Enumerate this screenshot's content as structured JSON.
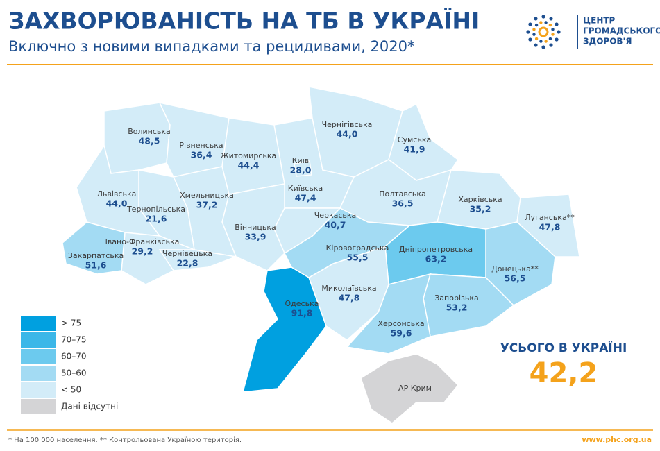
{
  "header": {
    "title": "ЗАХВОРЮВАНІСТЬ НА ТБ В УКРАЇНІ",
    "subtitle": "Включно з новими випадками та рецидивами, 2020*"
  },
  "logo": {
    "lines": [
      "ЦЕНТР",
      "ГРОМАДСЬКОГО",
      "ЗДОРОВ'Я"
    ]
  },
  "regions": [
    {
      "name": "Волинська",
      "value": "48,5",
      "color": "#d3ecf8"
    },
    {
      "name": "Рівненська",
      "value": "36,4",
      "color": "#d3ecf8"
    },
    {
      "name": "Житомирська",
      "value": "44,4",
      "color": "#d3ecf8"
    },
    {
      "name": "Київська",
      "value": "47,4",
      "color": "#d3ecf8"
    },
    {
      "name": "Київ",
      "value": "28,0",
      "color": "#d3ecf8"
    },
    {
      "name": "Чернігівська",
      "value": "44,0",
      "color": "#d3ecf8"
    },
    {
      "name": "Сумська",
      "value": "41,9",
      "color": "#d3ecf8"
    },
    {
      "name": "Полтавська",
      "value": "36,5",
      "color": "#d3ecf8"
    },
    {
      "name": "Харківська",
      "value": "35,2",
      "color": "#d3ecf8"
    },
    {
      "name": "Луганська**",
      "value": "47,8",
      "color": "#d3ecf8"
    },
    {
      "name": "Донецька**",
      "value": "56,5",
      "color": "#a3dbf3"
    },
    {
      "name": "Дніпропетровська",
      "value": "63,2",
      "color": "#6ccaee"
    },
    {
      "name": "Запорізька",
      "value": "53,2",
      "color": "#a3dbf3"
    },
    {
      "name": "Херсонська",
      "value": "59,6",
      "color": "#a3dbf3"
    },
    {
      "name": "Миколаївська",
      "value": "47,8",
      "color": "#d3ecf8"
    },
    {
      "name": "Одеська",
      "value": "91,8",
      "color": "#00a0e0"
    },
    {
      "name": "Кіровоградська",
      "value": "55,5",
      "color": "#a3dbf3"
    },
    {
      "name": "Черкаська",
      "value": "40,7",
      "color": "#d3ecf8"
    },
    {
      "name": "Вінницька",
      "value": "33,9",
      "color": "#d3ecf8"
    },
    {
      "name": "Хмельницька",
      "value": "37,2",
      "color": "#d3ecf8"
    },
    {
      "name": "Тернопільська",
      "value": "21,6",
      "color": "#d3ecf8"
    },
    {
      "name": "Львівська",
      "value": "44,0",
      "color": "#d3ecf8"
    },
    {
      "name": "Івано-Франківська",
      "value": "29,2",
      "color": "#d3ecf8"
    },
    {
      "name": "Чернівецька",
      "value": "22,8",
      "color": "#d3ecf8"
    },
    {
      "name": "Закарпатська",
      "value": "51,6",
      "color": "#a3dbf3"
    },
    {
      "name": "АР Крим",
      "color": "#d4d4d6"
    }
  ],
  "legend": [
    {
      "label": "> 75",
      "color": "#00a0e0"
    },
    {
      "label": "70–75",
      "color": "#3bb7e8"
    },
    {
      "label": "60–70",
      "color": "#6ccaee"
    },
    {
      "label": "50–60",
      "color": "#a3dbf3"
    },
    {
      "label": "< 50",
      "color": "#d3ecf8"
    },
    {
      "label": "Дані відсутні",
      "color": "#d4d4d6"
    }
  ],
  "total": {
    "label": "УСЬОГО В УКРАЇНІ",
    "value": "42,2"
  },
  "footer": {
    "note": "* На 100 000 населення. ** Контрольована Україною територія.",
    "url": "www.phc.org.ua"
  }
}
